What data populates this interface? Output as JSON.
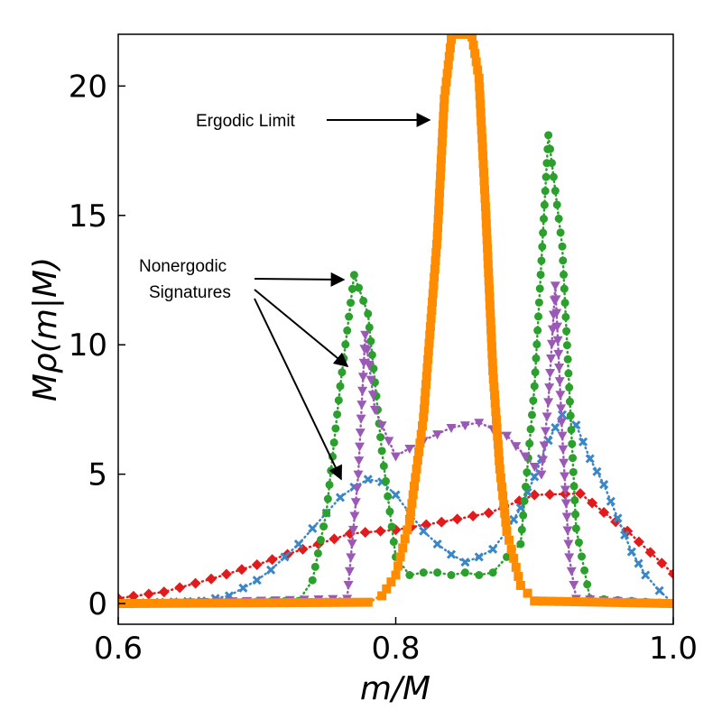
{
  "chart_data": {
    "type": "line",
    "xlabel": "m/M",
    "ylabel": "Mρ(m|M)",
    "xlim": [
      0.6,
      1.0
    ],
    "ylim": [
      -0.8,
      22
    ],
    "xticks": [
      {
        "value": 0.6,
        "label": "0.6"
      },
      {
        "value": 0.8,
        "label": "0.8"
      },
      {
        "value": 1.0,
        "label": "1.0"
      }
    ],
    "yticks": [
      {
        "value": 0,
        "label": "0"
      },
      {
        "value": 5,
        "label": "5"
      },
      {
        "value": 10,
        "label": "10"
      },
      {
        "value": 15,
        "label": "15"
      },
      {
        "value": 20,
        "label": "20"
      }
    ],
    "annotations": [
      {
        "text": "Ergodic Limit"
      },
      {
        "text": "Nonergodic"
      },
      {
        "text": "Signatures"
      }
    ],
    "series": [
      {
        "color": "#e31a1c",
        "marker": "diamond",
        "points": [
          [
            0.6,
            0.2
          ],
          [
            0.633,
            0.45
          ],
          [
            0.667,
            0.95
          ],
          [
            0.7,
            1.5
          ],
          [
            0.733,
            2.1
          ],
          [
            0.767,
            2.7
          ],
          [
            0.8,
            2.85
          ],
          [
            0.833,
            3.15
          ],
          [
            0.867,
            3.5
          ],
          [
            0.9,
            4.2
          ],
          [
            0.933,
            4.25
          ],
          [
            0.967,
            2.8
          ],
          [
            1.0,
            1.15
          ]
        ]
      },
      {
        "color": "#3a87c8",
        "marker": "x",
        "points": [
          [
            0.6,
            0.0
          ],
          [
            0.66,
            0.1
          ],
          [
            0.67,
            0.2
          ],
          [
            0.68,
            0.3
          ],
          [
            0.69,
            0.6
          ],
          [
            0.7,
            0.9
          ],
          [
            0.71,
            1.3
          ],
          [
            0.72,
            1.8
          ],
          [
            0.73,
            2.3
          ],
          [
            0.74,
            2.9
          ],
          [
            0.75,
            3.5
          ],
          [
            0.76,
            4.1
          ],
          [
            0.77,
            4.5
          ],
          [
            0.78,
            4.8
          ],
          [
            0.79,
            4.7
          ],
          [
            0.8,
            4.2
          ],
          [
            0.81,
            3.5
          ],
          [
            0.82,
            2.8
          ],
          [
            0.83,
            2.3
          ],
          [
            0.84,
            1.9
          ],
          [
            0.85,
            1.6
          ],
          [
            0.86,
            1.8
          ],
          [
            0.87,
            2.1
          ],
          [
            0.88,
            2.8
          ],
          [
            0.89,
            3.7
          ],
          [
            0.9,
            4.9
          ],
          [
            0.91,
            6.3
          ],
          [
            0.92,
            7.3
          ],
          [
            0.93,
            6.9
          ],
          [
            0.94,
            5.6
          ],
          [
            0.95,
            4.6
          ],
          [
            0.96,
            3.3
          ],
          [
            0.97,
            2.0
          ],
          [
            0.98,
            1.1
          ],
          [
            0.99,
            0.5
          ],
          [
            1.0,
            0.0
          ]
        ]
      },
      {
        "color": "#2ca02c",
        "marker": "circle",
        "points": [
          [
            0.6,
            0.0
          ],
          [
            0.73,
            0.1
          ],
          [
            0.74,
            0.9
          ],
          [
            0.75,
            3.5
          ],
          [
            0.76,
            8.4
          ],
          [
            0.77,
            12.7
          ],
          [
            0.78,
            11.2
          ],
          [
            0.79,
            5.9
          ],
          [
            0.8,
            1.8
          ],
          [
            0.81,
            1.1
          ],
          [
            0.82,
            1.2
          ],
          [
            0.83,
            1.2
          ],
          [
            0.84,
            1.1
          ],
          [
            0.85,
            1.2
          ],
          [
            0.86,
            1.1
          ],
          [
            0.87,
            1.2
          ],
          [
            0.88,
            1.8
          ],
          [
            0.89,
            2.3
          ],
          [
            0.9,
            8.4
          ],
          [
            0.91,
            18.1
          ],
          [
            0.92,
            13.8
          ],
          [
            0.93,
            2.9
          ],
          [
            0.94,
            0.2
          ],
          [
            1.0,
            0.0
          ]
        ]
      },
      {
        "color": "#9b59b6",
        "marker": "triangle-down",
        "points": [
          [
            0.6,
            0.0
          ],
          [
            0.765,
            0.2
          ],
          [
            0.773,
            5.0
          ],
          [
            0.778,
            10.4
          ],
          [
            0.785,
            7.5
          ],
          [
            0.8,
            5.7
          ],
          [
            0.82,
            6.3
          ],
          [
            0.84,
            6.8
          ],
          [
            0.86,
            7.0
          ],
          [
            0.88,
            6.5
          ],
          [
            0.9,
            5.3
          ],
          [
            0.905,
            5.0
          ],
          [
            0.91,
            7.8
          ],
          [
            0.915,
            12.3
          ],
          [
            0.92,
            6.5
          ],
          [
            0.925,
            1.8
          ],
          [
            0.93,
            0.2
          ],
          [
            1.0,
            0.0
          ]
        ]
      },
      {
        "color": "#ff8c00",
        "marker": "square",
        "points": [
          [
            0.6,
            0.0
          ],
          [
            0.78,
            0.05
          ],
          [
            0.79,
            0.3
          ],
          [
            0.8,
            1.1
          ],
          [
            0.81,
            3.2
          ],
          [
            0.82,
            7.2
          ],
          [
            0.83,
            14.2
          ],
          [
            0.835,
            19.5
          ],
          [
            0.84,
            21.8
          ],
          [
            0.845,
            22.0
          ],
          [
            0.85,
            22.0
          ],
          [
            0.855,
            21.9
          ],
          [
            0.86,
            20.3
          ],
          [
            0.865,
            15.0
          ],
          [
            0.87,
            9.0
          ],
          [
            0.875,
            5.2
          ],
          [
            0.88,
            2.8
          ],
          [
            0.89,
            0.7
          ],
          [
            0.9,
            0.1
          ],
          [
            1.0,
            0.0
          ]
        ]
      }
    ]
  }
}
